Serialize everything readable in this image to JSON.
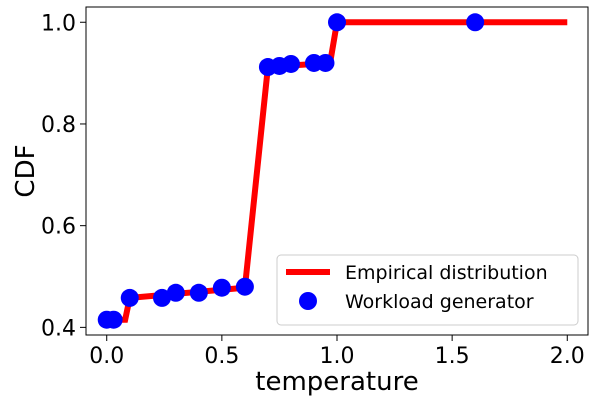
{
  "chart_data": {
    "type": "line",
    "xlabel": "temperature",
    "ylabel": "CDF",
    "xlim": [
      -0.09,
      2.09
    ],
    "ylim": [
      0.385,
      1.03
    ],
    "x_ticks": [
      0.0,
      0.5,
      1.0,
      1.5,
      2.0
    ],
    "x_tick_labels": [
      "0.0",
      "0.5",
      "1.0",
      "1.5",
      "2.0"
    ],
    "y_ticks": [
      0.4,
      0.6,
      0.8,
      1.0
    ],
    "y_tick_labels": [
      "0.4",
      "0.6",
      "0.8",
      "1.0"
    ],
    "grid": false,
    "legend_position": "lower-right",
    "series": [
      {
        "name": "Empirical distribution",
        "kind": "line",
        "color": "#ff0000",
        "x": [
          0.0,
          0.08,
          0.1,
          0.6,
          0.7,
          0.97,
          1.0,
          2.0
        ],
        "y": [
          0.415,
          0.415,
          0.458,
          0.478,
          0.912,
          0.92,
          1.0,
          1.0
        ]
      },
      {
        "name": "Workload generator",
        "kind": "scatter",
        "color": "#0000ff",
        "x": [
          0.0,
          0.03,
          0.1,
          0.24,
          0.3,
          0.4,
          0.5,
          0.6,
          0.7,
          0.75,
          0.8,
          0.9,
          0.95,
          1.0,
          1.6
        ],
        "y": [
          0.415,
          0.415,
          0.458,
          0.458,
          0.468,
          0.468,
          0.478,
          0.48,
          0.912,
          0.914,
          0.918,
          0.92,
          0.92,
          1.0,
          1.0
        ]
      }
    ]
  }
}
